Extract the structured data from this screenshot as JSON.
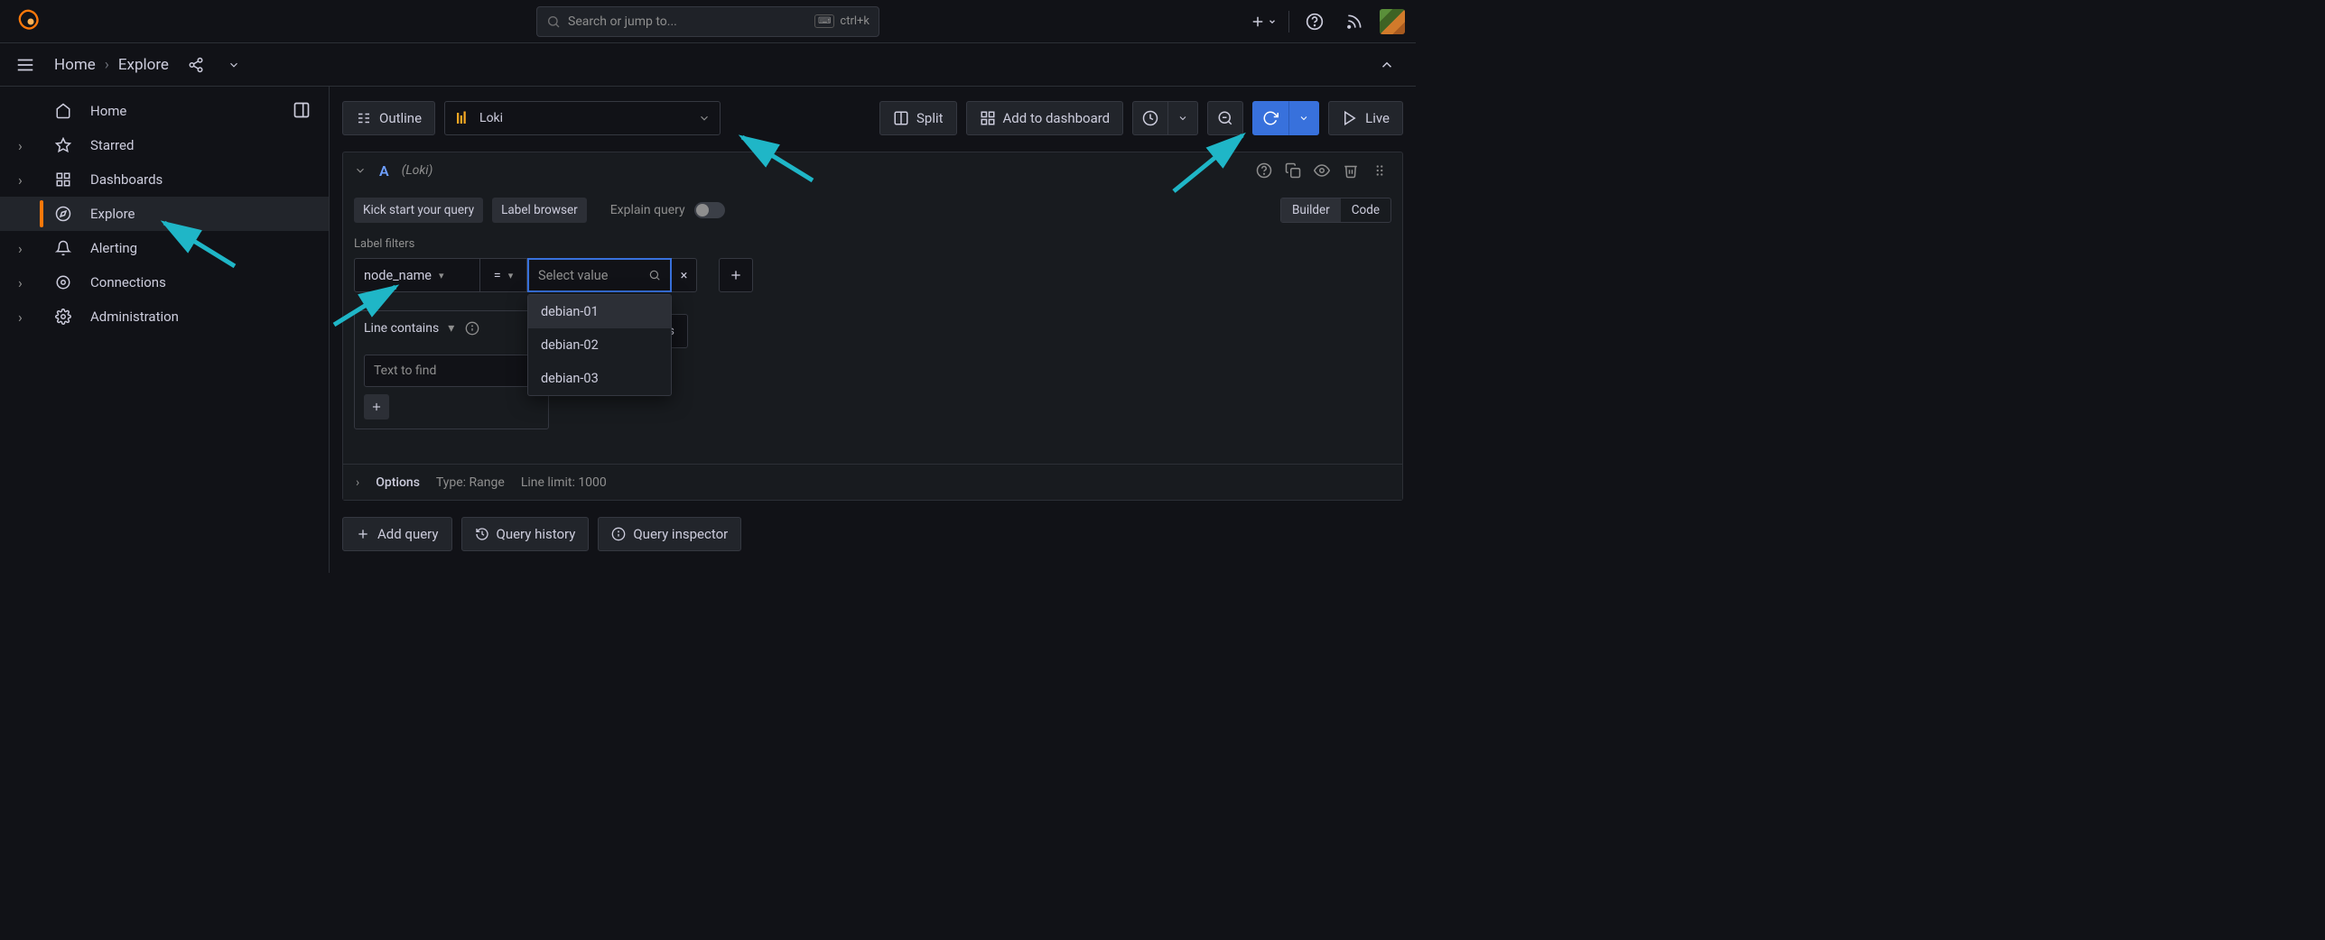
{
  "colors": {
    "accent": "#3871dc",
    "orange": "#ff780a",
    "arrow": "#1fb6c7"
  },
  "topbar": {
    "search_placeholder": "Search or jump to...",
    "shortcut": "ctrl+k"
  },
  "breadcrumb": {
    "home": "Home",
    "current": "Explore"
  },
  "sidebar": {
    "items": [
      {
        "label": "Home",
        "icon": "home",
        "hasSub": false
      },
      {
        "label": "Starred",
        "icon": "star",
        "hasSub": true
      },
      {
        "label": "Dashboards",
        "icon": "apps",
        "hasSub": true
      },
      {
        "label": "Explore",
        "icon": "compass",
        "hasSub": false,
        "selected": true
      },
      {
        "label": "Alerting",
        "icon": "bell",
        "hasSub": true
      },
      {
        "label": "Connections",
        "icon": "link",
        "hasSub": true
      },
      {
        "label": "Administration",
        "icon": "gear",
        "hasSub": true
      }
    ]
  },
  "toolbar": {
    "outline": "Outline",
    "datasource": "Loki",
    "split": "Split",
    "add_dashboard": "Add to dashboard",
    "live": "Live"
  },
  "query": {
    "id": "A",
    "ds_hint": "(Loki)",
    "kickstart": "Kick start your query",
    "label_browser": "Label browser",
    "explain": "Explain query",
    "mode_builder": "Builder",
    "mode_code": "Code",
    "filters_label": "Label filters",
    "filter_label": "node_name",
    "filter_op": "=",
    "filter_value_placeholder": "Select value",
    "dropdown_options": [
      "debian-01",
      "debian-02",
      "debian-03"
    ],
    "line_contains": "Line contains",
    "text_to_find": "Text to find",
    "operations": "Operations",
    "options": "Options",
    "type_meta": "Type: Range",
    "limit_meta": "Line limit: 1000"
  },
  "bottom": {
    "add_query": "Add query",
    "query_history": "Query history",
    "query_inspector": "Query inspector"
  }
}
